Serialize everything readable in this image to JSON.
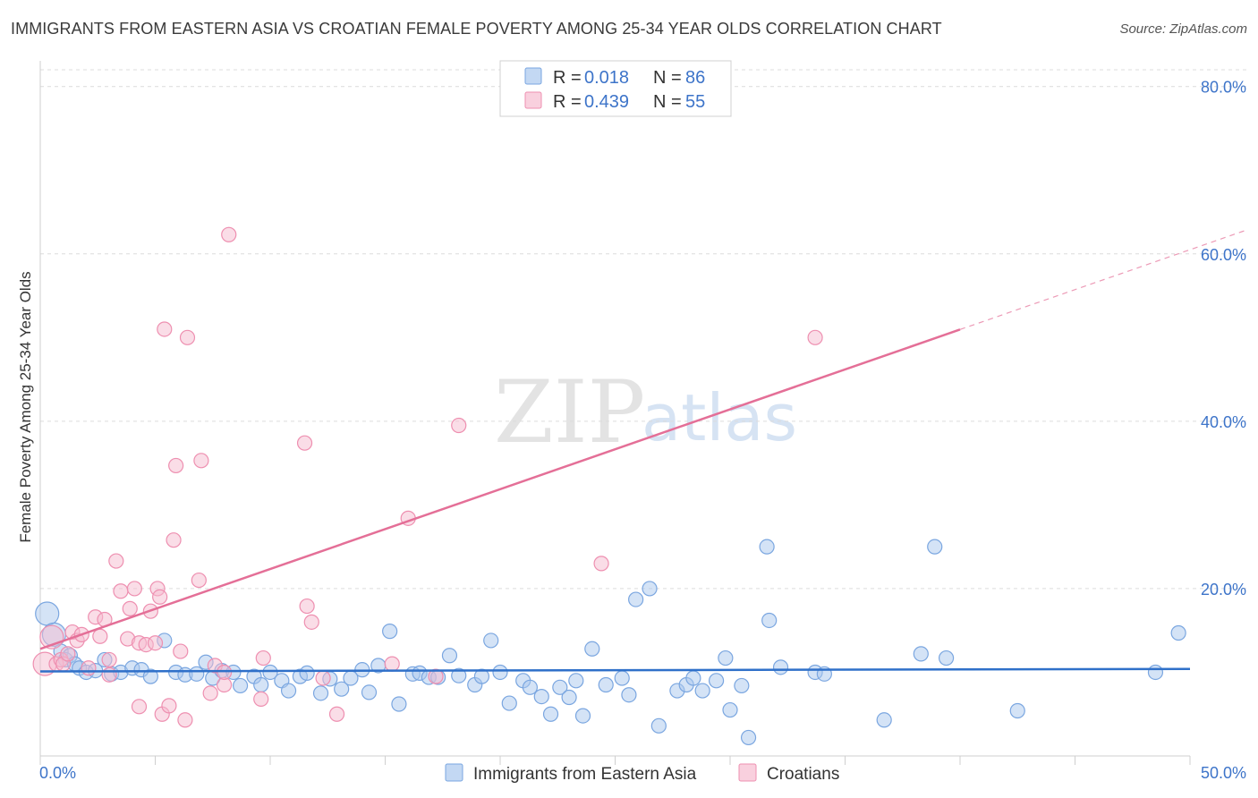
{
  "header": {
    "title": "IMMIGRANTS FROM EASTERN ASIA VS CROATIAN FEMALE POVERTY AMONG 25-34 YEAR OLDS CORRELATION CHART",
    "source": "Source: ZipAtlas.com"
  },
  "watermark": {
    "zip": "ZIP",
    "atlas": "atlas"
  },
  "legend": {
    "rows": [
      {
        "r_label": "R =",
        "r_value": "0.018",
        "n_label": "N =",
        "n_value": "86"
      },
      {
        "r_label": "R =",
        "r_value": "0.439",
        "n_label": "N =",
        "n_value": "55"
      }
    ]
  },
  "colors": {
    "series1_fill": "#a9c7ee",
    "series1_stroke": "#7aa6e0",
    "series1_line": "#2f70c9",
    "series2_fill": "#f6bcd0",
    "series2_stroke": "#ee8fb0",
    "series2_line": "#e46f97",
    "tick": "#3d74c9",
    "grid": "#dcdcdc"
  },
  "chart_data": {
    "type": "scatter",
    "title": "IMMIGRANTS FROM EASTERN ASIA VS CROATIAN FEMALE POVERTY AMONG 25-34 YEAR OLDS CORRELATION CHART",
    "xlabel": "",
    "ylabel": "Female Poverty Among 25-34 Year Olds",
    "xlim": [
      0,
      50
    ],
    "ylim": [
      0,
      82
    ],
    "x_tick_labels": [
      "0.0%",
      "50.0%"
    ],
    "y_ticks": [
      20,
      40,
      60,
      80
    ],
    "y_tick_labels": [
      "20.0%",
      "40.0%",
      "60.0%",
      "80.0%"
    ],
    "grid": true,
    "legend_position": "top-center",
    "series": [
      {
        "name": "Immigrants from Eastern Asia",
        "R": 0.018,
        "N": 86,
        "trend": {
          "x": [
            0,
            50
          ],
          "y": [
            10.1,
            10.4
          ],
          "dashed_from": null
        },
        "points": [
          {
            "x": 0.3,
            "y": 17.0,
            "big": true
          },
          {
            "x": 0.6,
            "y": 14.5,
            "big": true
          },
          {
            "x": 0.9,
            "y": 12.5
          },
          {
            "x": 1.1,
            "y": 11.5
          },
          {
            "x": 1.3,
            "y": 12.0
          },
          {
            "x": 1.5,
            "y": 11.0
          },
          {
            "x": 1.7,
            "y": 10.5
          },
          {
            "x": 2.0,
            "y": 10.0
          },
          {
            "x": 2.4,
            "y": 10.2
          },
          {
            "x": 2.8,
            "y": 11.5
          },
          {
            "x": 3.1,
            "y": 9.8
          },
          {
            "x": 3.5,
            "y": 10.0
          },
          {
            "x": 4.0,
            "y": 10.5
          },
          {
            "x": 4.4,
            "y": 10.3
          },
          {
            "x": 4.8,
            "y": 9.5
          },
          {
            "x": 5.4,
            "y": 13.8
          },
          {
            "x": 5.9,
            "y": 10.0
          },
          {
            "x": 6.3,
            "y": 9.7
          },
          {
            "x": 6.8,
            "y": 9.8
          },
          {
            "x": 7.2,
            "y": 11.2
          },
          {
            "x": 7.5,
            "y": 9.3
          },
          {
            "x": 7.9,
            "y": 10.2
          },
          {
            "x": 8.4,
            "y": 10.0
          },
          {
            "x": 8.7,
            "y": 8.4
          },
          {
            "x": 9.3,
            "y": 9.5
          },
          {
            "x": 9.6,
            "y": 8.5
          },
          {
            "x": 10.0,
            "y": 10.0
          },
          {
            "x": 10.5,
            "y": 9.0
          },
          {
            "x": 10.8,
            "y": 7.8
          },
          {
            "x": 11.3,
            "y": 9.5
          },
          {
            "x": 11.6,
            "y": 9.9
          },
          {
            "x": 12.2,
            "y": 7.5
          },
          {
            "x": 12.6,
            "y": 9.2
          },
          {
            "x": 13.1,
            "y": 8.0
          },
          {
            "x": 13.5,
            "y": 9.3
          },
          {
            "x": 14.0,
            "y": 10.3
          },
          {
            "x": 14.3,
            "y": 7.6
          },
          {
            "x": 14.7,
            "y": 10.8
          },
          {
            "x": 15.2,
            "y": 14.9
          },
          {
            "x": 15.6,
            "y": 6.2
          },
          {
            "x": 16.2,
            "y": 9.8
          },
          {
            "x": 16.5,
            "y": 9.9
          },
          {
            "x": 16.9,
            "y": 9.4
          },
          {
            "x": 17.3,
            "y": 9.4
          },
          {
            "x": 17.8,
            "y": 12.0
          },
          {
            "x": 18.2,
            "y": 9.6
          },
          {
            "x": 18.9,
            "y": 8.5
          },
          {
            "x": 19.2,
            "y": 9.5
          },
          {
            "x": 19.6,
            "y": 13.8
          },
          {
            "x": 20.0,
            "y": 10.0
          },
          {
            "x": 20.4,
            "y": 6.3
          },
          {
            "x": 21.0,
            "y": 9.0
          },
          {
            "x": 21.3,
            "y": 8.2
          },
          {
            "x": 21.8,
            "y": 7.1
          },
          {
            "x": 22.2,
            "y": 5.0
          },
          {
            "x": 22.6,
            "y": 8.2
          },
          {
            "x": 23.0,
            "y": 7.0
          },
          {
            "x": 23.3,
            "y": 9.0
          },
          {
            "x": 23.6,
            "y": 4.8
          },
          {
            "x": 24.0,
            "y": 12.8
          },
          {
            "x": 24.6,
            "y": 8.5
          },
          {
            "x": 25.3,
            "y": 9.3
          },
          {
            "x": 25.6,
            "y": 7.3
          },
          {
            "x": 25.9,
            "y": 18.7
          },
          {
            "x": 26.5,
            "y": 20.0
          },
          {
            "x": 26.9,
            "y": 3.6
          },
          {
            "x": 27.7,
            "y": 7.8
          },
          {
            "x": 28.1,
            "y": 8.5
          },
          {
            "x": 28.4,
            "y": 9.3
          },
          {
            "x": 28.8,
            "y": 7.8
          },
          {
            "x": 29.4,
            "y": 9.0
          },
          {
            "x": 29.8,
            "y": 11.7
          },
          {
            "x": 30.0,
            "y": 5.5
          },
          {
            "x": 30.5,
            "y": 8.4
          },
          {
            "x": 30.8,
            "y": 2.2
          },
          {
            "x": 31.6,
            "y": 25.0
          },
          {
            "x": 31.7,
            "y": 16.2
          },
          {
            "x": 32.2,
            "y": 10.6
          },
          {
            "x": 33.7,
            "y": 10.0
          },
          {
            "x": 36.7,
            "y": 4.3
          },
          {
            "x": 38.3,
            "y": 12.2
          },
          {
            "x": 38.9,
            "y": 25.0
          },
          {
            "x": 39.4,
            "y": 11.7
          },
          {
            "x": 42.5,
            "y": 5.4
          },
          {
            "x": 48.5,
            "y": 10.0
          },
          {
            "x": 49.5,
            "y": 14.7
          },
          {
            "x": 34.1,
            "y": 9.8
          }
        ]
      },
      {
        "name": "Croatians",
        "R": 0.439,
        "N": 55,
        "trend": {
          "x": [
            0,
            50
          ],
          "y": [
            12.8,
            60.5
          ],
          "dashed_from": 40
        },
        "points": [
          {
            "x": 0.2,
            "y": 11.0,
            "big": true
          },
          {
            "x": 0.5,
            "y": 14.2,
            "big": true
          },
          {
            "x": 0.7,
            "y": 11.0
          },
          {
            "x": 0.9,
            "y": 11.5
          },
          {
            "x": 1.0,
            "y": 11.0
          },
          {
            "x": 1.2,
            "y": 12.2
          },
          {
            "x": 1.4,
            "y": 14.8
          },
          {
            "x": 1.6,
            "y": 13.8
          },
          {
            "x": 1.8,
            "y": 14.5
          },
          {
            "x": 2.1,
            "y": 10.5
          },
          {
            "x": 2.4,
            "y": 16.6
          },
          {
            "x": 2.6,
            "y": 14.3
          },
          {
            "x": 2.8,
            "y": 16.3
          },
          {
            "x": 3.0,
            "y": 11.5
          },
          {
            "x": 3.3,
            "y": 23.3
          },
          {
            "x": 3.5,
            "y": 19.7
          },
          {
            "x": 3.8,
            "y": 14.0
          },
          {
            "x": 3.9,
            "y": 17.6
          },
          {
            "x": 4.1,
            "y": 20.0
          },
          {
            "x": 4.3,
            "y": 13.5
          },
          {
            "x": 4.3,
            "y": 5.9
          },
          {
            "x": 4.6,
            "y": 13.3
          },
          {
            "x": 4.8,
            "y": 17.3
          },
          {
            "x": 5.0,
            "y": 13.5
          },
          {
            "x": 5.1,
            "y": 20.0
          },
          {
            "x": 5.2,
            "y": 19.0
          },
          {
            "x": 5.3,
            "y": 5.0
          },
          {
            "x": 5.4,
            "y": 51.0
          },
          {
            "x": 5.6,
            "y": 6.0
          },
          {
            "x": 5.8,
            "y": 25.8
          },
          {
            "x": 5.9,
            "y": 34.7
          },
          {
            "x": 6.1,
            "y": 12.5
          },
          {
            "x": 6.3,
            "y": 4.3
          },
          {
            "x": 6.4,
            "y": 50.0
          },
          {
            "x": 6.9,
            "y": 21.0
          },
          {
            "x": 7.0,
            "y": 35.3
          },
          {
            "x": 7.4,
            "y": 7.5
          },
          {
            "x": 7.6,
            "y": 10.8
          },
          {
            "x": 8.0,
            "y": 8.5
          },
          {
            "x": 8.2,
            "y": 62.3
          },
          {
            "x": 9.6,
            "y": 6.8
          },
          {
            "x": 9.7,
            "y": 11.7
          },
          {
            "x": 11.5,
            "y": 37.4
          },
          {
            "x": 11.6,
            "y": 17.9
          },
          {
            "x": 11.8,
            "y": 16.0
          },
          {
            "x": 12.3,
            "y": 9.3
          },
          {
            "x": 12.9,
            "y": 5.0
          },
          {
            "x": 15.3,
            "y": 11.0
          },
          {
            "x": 16.0,
            "y": 28.4
          },
          {
            "x": 17.2,
            "y": 9.5
          },
          {
            "x": 18.2,
            "y": 39.5
          },
          {
            "x": 24.4,
            "y": 23.0
          },
          {
            "x": 33.7,
            "y": 50.0
          },
          {
            "x": 8.0,
            "y": 10.0
          },
          {
            "x": 3.0,
            "y": 9.7
          }
        ]
      }
    ]
  },
  "bottom_legend": {
    "items": [
      {
        "label": "Immigrants from Eastern Asia"
      },
      {
        "label": "Croatians"
      }
    ]
  }
}
